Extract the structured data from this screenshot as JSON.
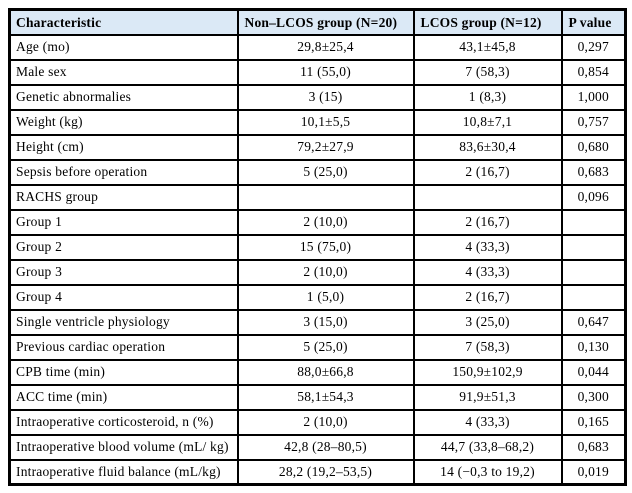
{
  "colors": {
    "header_bg": "#dbe9f6",
    "border": "#000000",
    "text": "#000000",
    "page_bg": "#ffffff"
  },
  "table": {
    "columns": [
      "Characteristic",
      "Non–LCOS group (N=20)",
      "LCOS group (N=12)",
      "P value"
    ],
    "rows": [
      {
        "characteristic": "Age (mo)",
        "non_lcos": "29,8±25,4",
        "lcos": "43,1±45,8",
        "p_value": "0,297"
      },
      {
        "characteristic": "Male sex",
        "non_lcos": "11 (55,0)",
        "lcos": "7 (58,3)",
        "p_value": "0,854"
      },
      {
        "characteristic": "Genetic abnormalies",
        "non_lcos": "3 (15)",
        "lcos": "1 (8,3)",
        "p_value": "1,000"
      },
      {
        "characteristic": "Weight (kg)",
        "non_lcos": "10,1±5,5",
        "lcos": "10,8±7,1",
        "p_value": "0,757"
      },
      {
        "characteristic": "Height (cm)",
        "non_lcos": "79,2±27,9",
        "lcos": "83,6±30,4",
        "p_value": "0,680"
      },
      {
        "characteristic": "Sepsis before operation",
        "non_lcos": "5 (25,0)",
        "lcos": "2 (16,7)",
        "p_value": "0,683"
      },
      {
        "characteristic": "RACHS group",
        "non_lcos": "",
        "lcos": "",
        "p_value": "0,096"
      },
      {
        "characteristic": "Group 1",
        "non_lcos": "2 (10,0)",
        "lcos": "2 (16,7)",
        "p_value": ""
      },
      {
        "characteristic": "Group 2",
        "non_lcos": "15 (75,0)",
        "lcos": "4 (33,3)",
        "p_value": ""
      },
      {
        "characteristic": "Group 3",
        "non_lcos": "2 (10,0)",
        "lcos": "4 (33,3)",
        "p_value": ""
      },
      {
        "characteristic": "Group 4",
        "non_lcos": "1 (5,0)",
        "lcos": "2 (16,7)",
        "p_value": ""
      },
      {
        "characteristic": "Single ventricle physiology",
        "non_lcos": "3 (15,0)",
        "lcos": "3 (25,0)",
        "p_value": "0,647"
      },
      {
        "characteristic": "Previous cardiac operation",
        "non_lcos": "5 (25,0)",
        "lcos": "7 (58,3)",
        "p_value": "0,130"
      },
      {
        "characteristic": "CPB time (min)",
        "non_lcos": "88,0±66,8",
        "lcos": "150,9±102,9",
        "p_value": "0,044"
      },
      {
        "characteristic": "ACC time (min)",
        "non_lcos": "58,1±54,3",
        "lcos": "91,9±51,3",
        "p_value": "0,300"
      },
      {
        "characteristic": "Intraoperative corticosteroid, n (%)",
        "non_lcos": "2 (10,0)",
        "lcos": "4 (33,3)",
        "p_value": "0,165"
      },
      {
        "characteristic": "Intraoperative blood volume (mL/ kg)",
        "non_lcos": "42,8 (28–80,5)",
        "lcos": "44,7 (33,8–68,2)",
        "p_value": "0,683"
      },
      {
        "characteristic": "Intraoperative fluid balance (mL/kg)",
        "non_lcos": "28,2 (19,2–53,5)",
        "lcos": "14 (−0,3 to 19,2)",
        "p_value": "0,019"
      }
    ]
  }
}
